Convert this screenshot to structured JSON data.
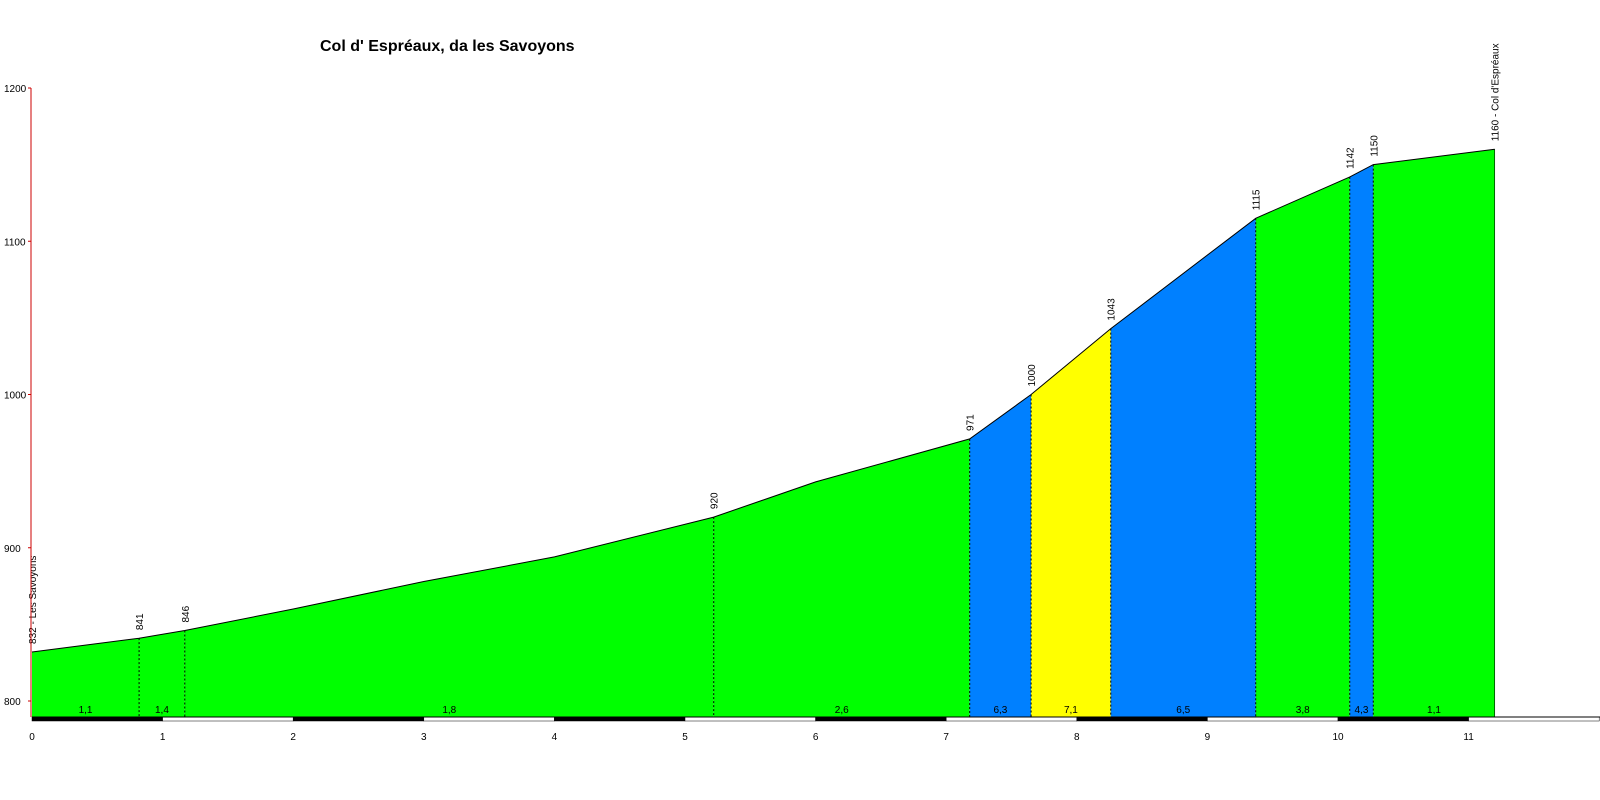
{
  "chart_data": {
    "type": "area",
    "title": "Col d' Espréaux, da les Savoyons",
    "xlabel": "",
    "ylabel": "",
    "xlim": [
      0,
      11.7
    ],
    "ylim": [
      800,
      1200
    ],
    "x_ticks": [
      "0",
      "1",
      "2",
      "3",
      "4",
      "5",
      "6",
      "7",
      "8",
      "9",
      "10",
      "11"
    ],
    "y_ticks": [
      "800",
      "900",
      "1000",
      "1100",
      "1200"
    ],
    "grid": false,
    "colors": {
      "gentle": "#00ff00",
      "steep": "#0080ff",
      "steepest": "#ffff00",
      "axis_y": "#cc0000",
      "outline": "#000000"
    },
    "profile_curve": [
      {
        "x": 0,
        "y": 832
      },
      {
        "x": 0.82,
        "y": 841
      },
      {
        "x": 1.17,
        "y": 846
      },
      {
        "x": 2.0,
        "y": 860
      },
      {
        "x": 3.0,
        "y": 878
      },
      {
        "x": 4.0,
        "y": 894
      },
      {
        "x": 5.22,
        "y": 920
      },
      {
        "x": 6.0,
        "y": 943
      },
      {
        "x": 7.18,
        "y": 971
      },
      {
        "x": 7.65,
        "y": 1000
      },
      {
        "x": 8.26,
        "y": 1043
      },
      {
        "x": 9.37,
        "y": 1115
      },
      {
        "x": 10.09,
        "y": 1142
      },
      {
        "x": 10.27,
        "y": 1150
      },
      {
        "x": 11.2,
        "y": 1160
      }
    ],
    "waypoints": [
      {
        "x": 0,
        "y": 832,
        "label": "832 - Les Savoyons"
      },
      {
        "x": 0.82,
        "y": 841,
        "label": "841"
      },
      {
        "x": 1.17,
        "y": 846,
        "label": "846"
      },
      {
        "x": 5.22,
        "y": 920,
        "label": "920"
      },
      {
        "x": 7.18,
        "y": 971,
        "label": "971"
      },
      {
        "x": 7.65,
        "y": 1000,
        "label": "1000"
      },
      {
        "x": 8.26,
        "y": 1043,
        "label": "1043"
      },
      {
        "x": 9.37,
        "y": 1115,
        "label": "1115"
      },
      {
        "x": 10.09,
        "y": 1142,
        "label": "1142"
      },
      {
        "x": 10.27,
        "y": 1150,
        "label": "1150"
      },
      {
        "x": 11.2,
        "y": 1160,
        "label": "1160 - Col d'Espréaux"
      }
    ],
    "segments": [
      {
        "x0": 0,
        "x1": 0.82,
        "gradient": "1,1",
        "color": "gentle"
      },
      {
        "x0": 0.82,
        "x1": 1.17,
        "gradient": "1,4",
        "color": "gentle"
      },
      {
        "x0": 1.17,
        "x1": 5.22,
        "gradient": "1,8",
        "color": "gentle"
      },
      {
        "x0": 5.22,
        "x1": 7.18,
        "gradient": "2,6",
        "color": "gentle"
      },
      {
        "x0": 7.18,
        "x1": 7.65,
        "gradient": "6,3",
        "color": "steep"
      },
      {
        "x0": 7.65,
        "x1": 8.26,
        "gradient": "7,1",
        "color": "steepest"
      },
      {
        "x0": 8.26,
        "x1": 9.37,
        "gradient": "6,5",
        "color": "steep"
      },
      {
        "x0": 9.37,
        "x1": 10.09,
        "gradient": "3,8",
        "color": "gentle"
      },
      {
        "x0": 10.09,
        "x1": 10.27,
        "gradient": "4,3",
        "color": "steep"
      },
      {
        "x0": 10.27,
        "x1": 11.2,
        "gradient": "1,1",
        "color": "gentle"
      }
    ]
  }
}
